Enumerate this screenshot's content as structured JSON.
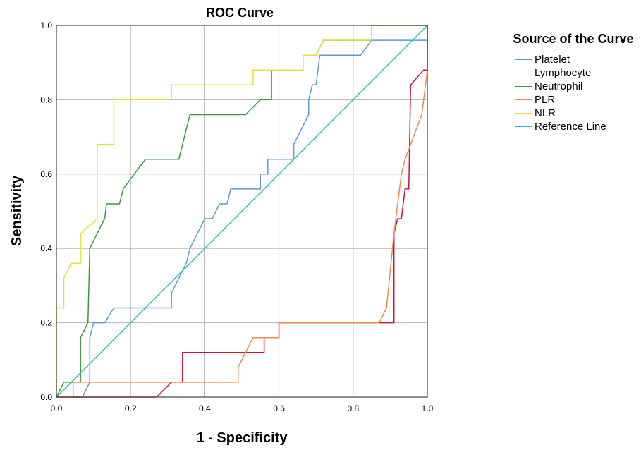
{
  "chart_data": {
    "type": "line",
    "title": "ROC Curve",
    "xlabel": "1 - Specificity",
    "ylabel": "Sensitivity",
    "xlim": [
      0,
      1
    ],
    "ylim": [
      0,
      1
    ],
    "xticks": [
      "0.0",
      "0.2",
      "0.4",
      "0.6",
      "0.8",
      "1.0"
    ],
    "yticks": [
      "0.0",
      "0.2",
      "0.4",
      "0.6",
      "0.8",
      "1.0"
    ],
    "grid": true,
    "legend_title": "Source of the Curve",
    "legend_position": "right",
    "series": [
      {
        "name": "Platelet",
        "color": "#5b9bd5",
        "points": [
          [
            0,
            0
          ],
          [
            0.07,
            0
          ],
          [
            0.09,
            0.04
          ],
          [
            0.09,
            0.16
          ],
          [
            0.1,
            0.2
          ],
          [
            0.13,
            0.2
          ],
          [
            0.155,
            0.24
          ],
          [
            0.31,
            0.24
          ],
          [
            0.31,
            0.28
          ],
          [
            0.35,
            0.36
          ],
          [
            0.36,
            0.4
          ],
          [
            0.4,
            0.48
          ],
          [
            0.42,
            0.48
          ],
          [
            0.44,
            0.52
          ],
          [
            0.46,
            0.52
          ],
          [
            0.47,
            0.56
          ],
          [
            0.55,
            0.56
          ],
          [
            0.55,
            0.6
          ],
          [
            0.57,
            0.6
          ],
          [
            0.57,
            0.64
          ],
          [
            0.62,
            0.64
          ],
          [
            0.64,
            0.64
          ],
          [
            0.64,
            0.68
          ],
          [
            0.66,
            0.72
          ],
          [
            0.68,
            0.76
          ],
          [
            0.68,
            0.8
          ],
          [
            0.69,
            0.84
          ],
          [
            0.7,
            0.84
          ],
          [
            0.71,
            0.92
          ],
          [
            0.82,
            0.92
          ],
          [
            0.85,
            0.96
          ],
          [
            1.0,
            0.96
          ],
          [
            1.0,
            1.0
          ]
        ]
      },
      {
        "name": "Lymphocyte",
        "color": "#d0103a",
        "points": [
          [
            0,
            0
          ],
          [
            0.27,
            0
          ],
          [
            0.31,
            0.04
          ],
          [
            0.34,
            0.04
          ],
          [
            0.34,
            0.12
          ],
          [
            0.56,
            0.12
          ],
          [
            0.56,
            0.16
          ],
          [
            0.6,
            0.16
          ],
          [
            0.6,
            0.2
          ],
          [
            0.91,
            0.2
          ],
          [
            0.91,
            0.44
          ],
          [
            0.92,
            0.48
          ],
          [
            0.93,
            0.48
          ],
          [
            0.94,
            0.56
          ],
          [
            0.95,
            0.56
          ],
          [
            0.955,
            0.84
          ],
          [
            0.99,
            0.88
          ],
          [
            1.0,
            0.88
          ],
          [
            1.0,
            1.0
          ]
        ]
      },
      {
        "name": "Neutrophil",
        "color": "#3a9a3a",
        "points": [
          [
            0,
            0
          ],
          [
            0.02,
            0.04
          ],
          [
            0.065,
            0.04
          ],
          [
            0.065,
            0.16
          ],
          [
            0.085,
            0.2
          ],
          [
            0.09,
            0.4
          ],
          [
            0.13,
            0.48
          ],
          [
            0.135,
            0.52
          ],
          [
            0.17,
            0.52
          ],
          [
            0.18,
            0.56
          ],
          [
            0.24,
            0.64
          ],
          [
            0.33,
            0.64
          ],
          [
            0.36,
            0.76
          ],
          [
            0.51,
            0.76
          ],
          [
            0.55,
            0.8
          ],
          [
            0.58,
            0.8
          ],
          [
            0.58,
            0.88
          ],
          [
            0.665,
            0.88
          ],
          [
            0.665,
            0.92
          ],
          [
            0.7,
            0.92
          ],
          [
            0.72,
            0.96
          ],
          [
            0.85,
            0.96
          ],
          [
            0.85,
            1.0
          ],
          [
            1.0,
            1.0
          ]
        ]
      },
      {
        "name": "PLR",
        "color": "#f28a4a",
        "points": [
          [
            0,
            0
          ],
          [
            0.045,
            0
          ],
          [
            0.045,
            0.04
          ],
          [
            0.49,
            0.04
          ],
          [
            0.49,
            0.08
          ],
          [
            0.53,
            0.16
          ],
          [
            0.6,
            0.16
          ],
          [
            0.6,
            0.2
          ],
          [
            0.87,
            0.2
          ],
          [
            0.89,
            0.24
          ],
          [
            0.91,
            0.44
          ],
          [
            0.915,
            0.48
          ],
          [
            0.93,
            0.6
          ],
          [
            0.94,
            0.64
          ],
          [
            0.97,
            0.72
          ],
          [
            0.985,
            0.76
          ],
          [
            1.0,
            0.88
          ],
          [
            1.0,
            1.0
          ]
        ]
      },
      {
        "name": "NLR",
        "color": "#e5e030",
        "points": [
          [
            0,
            0
          ],
          [
            0,
            0.24
          ],
          [
            0.02,
            0.24
          ],
          [
            0.02,
            0.32
          ],
          [
            0.04,
            0.36
          ],
          [
            0.065,
            0.36
          ],
          [
            0.065,
            0.44
          ],
          [
            0.11,
            0.48
          ],
          [
            0.11,
            0.68
          ],
          [
            0.155,
            0.68
          ],
          [
            0.155,
            0.8
          ],
          [
            0.31,
            0.8
          ],
          [
            0.31,
            0.84
          ],
          [
            0.53,
            0.84
          ],
          [
            0.53,
            0.88
          ],
          [
            0.665,
            0.88
          ],
          [
            0.665,
            0.92
          ],
          [
            0.7,
            0.92
          ],
          [
            0.72,
            0.96
          ],
          [
            0.85,
            0.96
          ],
          [
            0.85,
            1.0
          ],
          [
            1.0,
            1.0
          ]
        ]
      },
      {
        "name": "Reference Line",
        "color": "#2abfb5",
        "points": [
          [
            0,
            0
          ],
          [
            1,
            1
          ]
        ]
      }
    ]
  }
}
